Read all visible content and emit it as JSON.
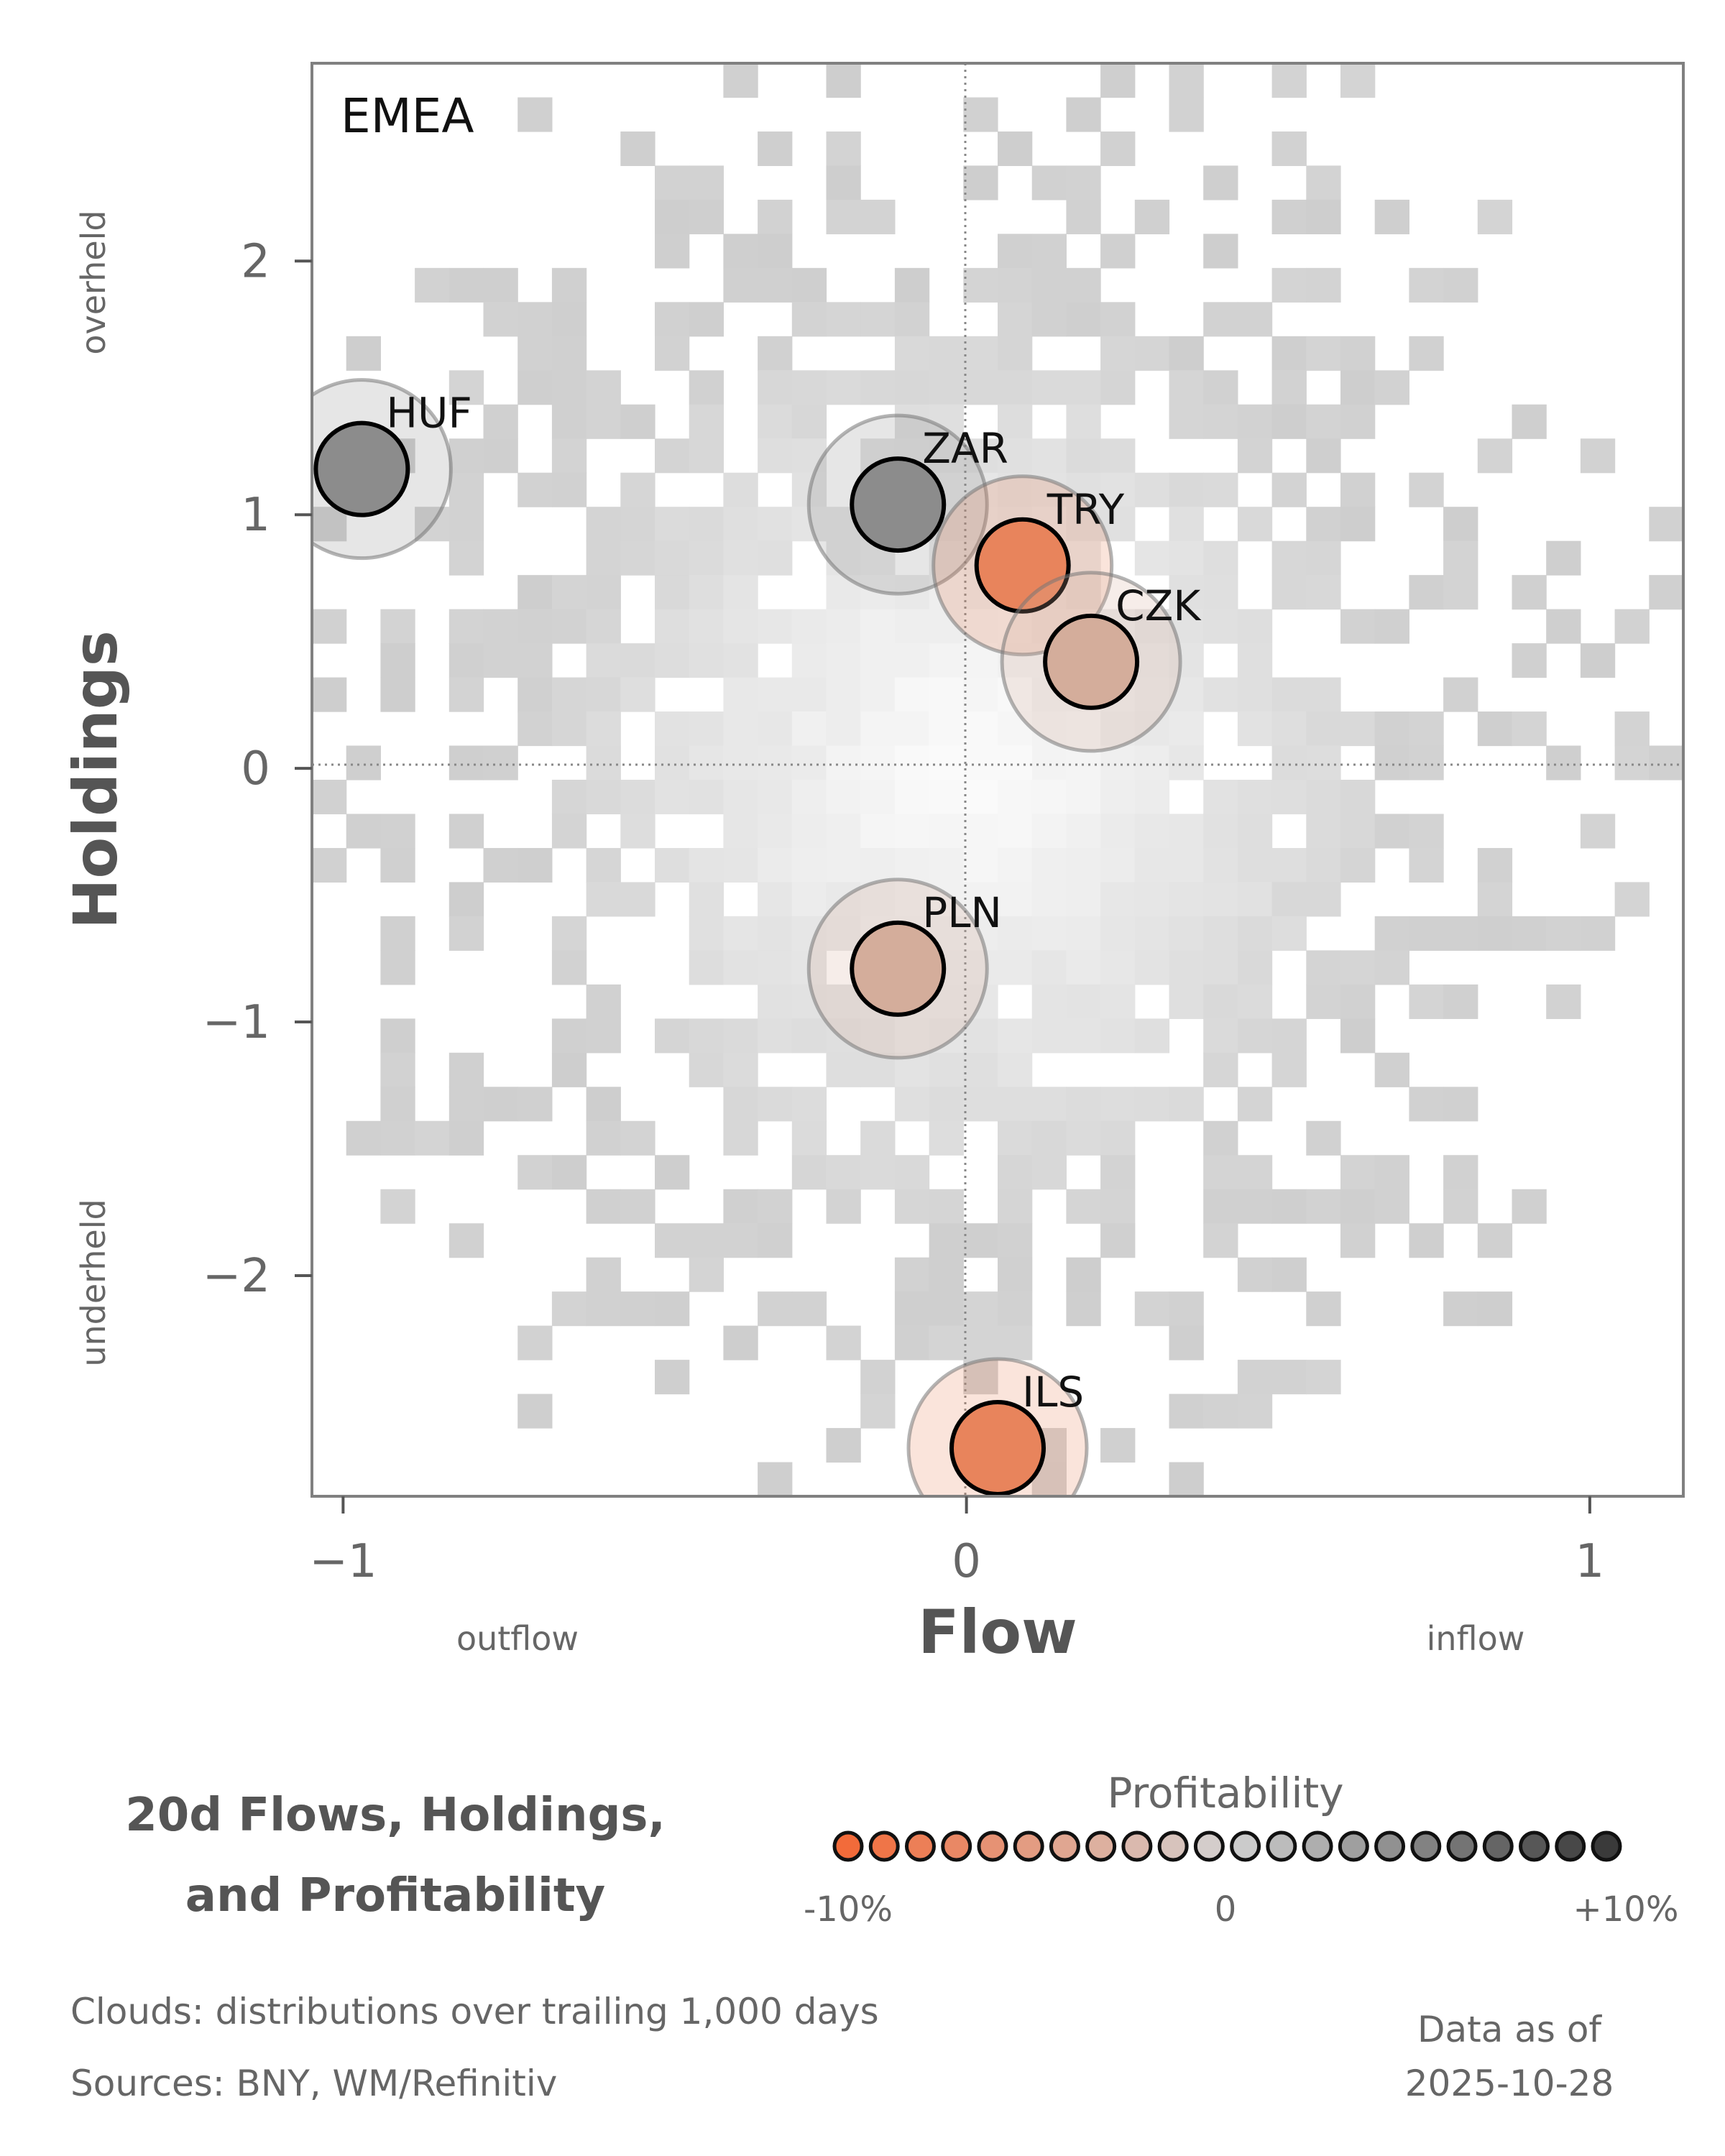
{
  "chart_data": {
    "type": "scatter",
    "region": "EMEA",
    "xlabel": "Flow",
    "ylabel": "Holdings",
    "xlim": [
      -1.05,
      1.15
    ],
    "ylim": [
      -2.87,
      2.78
    ],
    "x_ticks": [
      -1,
      0,
      1
    ],
    "y_ticks": [
      -2,
      -1,
      0,
      1,
      2
    ],
    "x_low_label": "outflow",
    "x_high_label": "inflow",
    "y_low_label": "underheld",
    "y_high_label": "overheld",
    "points": [
      {
        "label": "HUF",
        "x": -0.97,
        "y": 1.18,
        "color": "#8c8c8c"
      },
      {
        "label": "ZAR",
        "x": -0.11,
        "y": 1.04,
        "color": "#8c8c8c"
      },
      {
        "label": "TRY",
        "x": 0.09,
        "y": 0.8,
        "color": "#e8845c"
      },
      {
        "label": "CZK",
        "x": 0.2,
        "y": 0.42,
        "color": "#d4ad9b"
      },
      {
        "label": "PLN",
        "x": -0.11,
        "y": -0.79,
        "color": "#d4ad9b"
      },
      {
        "label": "ILS",
        "x": 0.05,
        "y": -2.68,
        "color": "#e8845c"
      }
    ],
    "colorbar": {
      "title": "Profitability",
      "min_label": "-10%",
      "mid_label": "0",
      "max_label": "+10%",
      "low_color": "#f26b3a",
      "mid_color": "#d2d2d2",
      "high_color": "#3a3a3a"
    }
  },
  "title": {
    "line1": "20d Flows, Holdings,",
    "line2": "and Profitability"
  },
  "footnotes": {
    "clouds": "Clouds:  distributions over trailing 1,000 days",
    "sources": "Sources:  BNY, WM/Refinitiv",
    "asof_label": "Data as of",
    "asof_date": "2025-10-28"
  }
}
